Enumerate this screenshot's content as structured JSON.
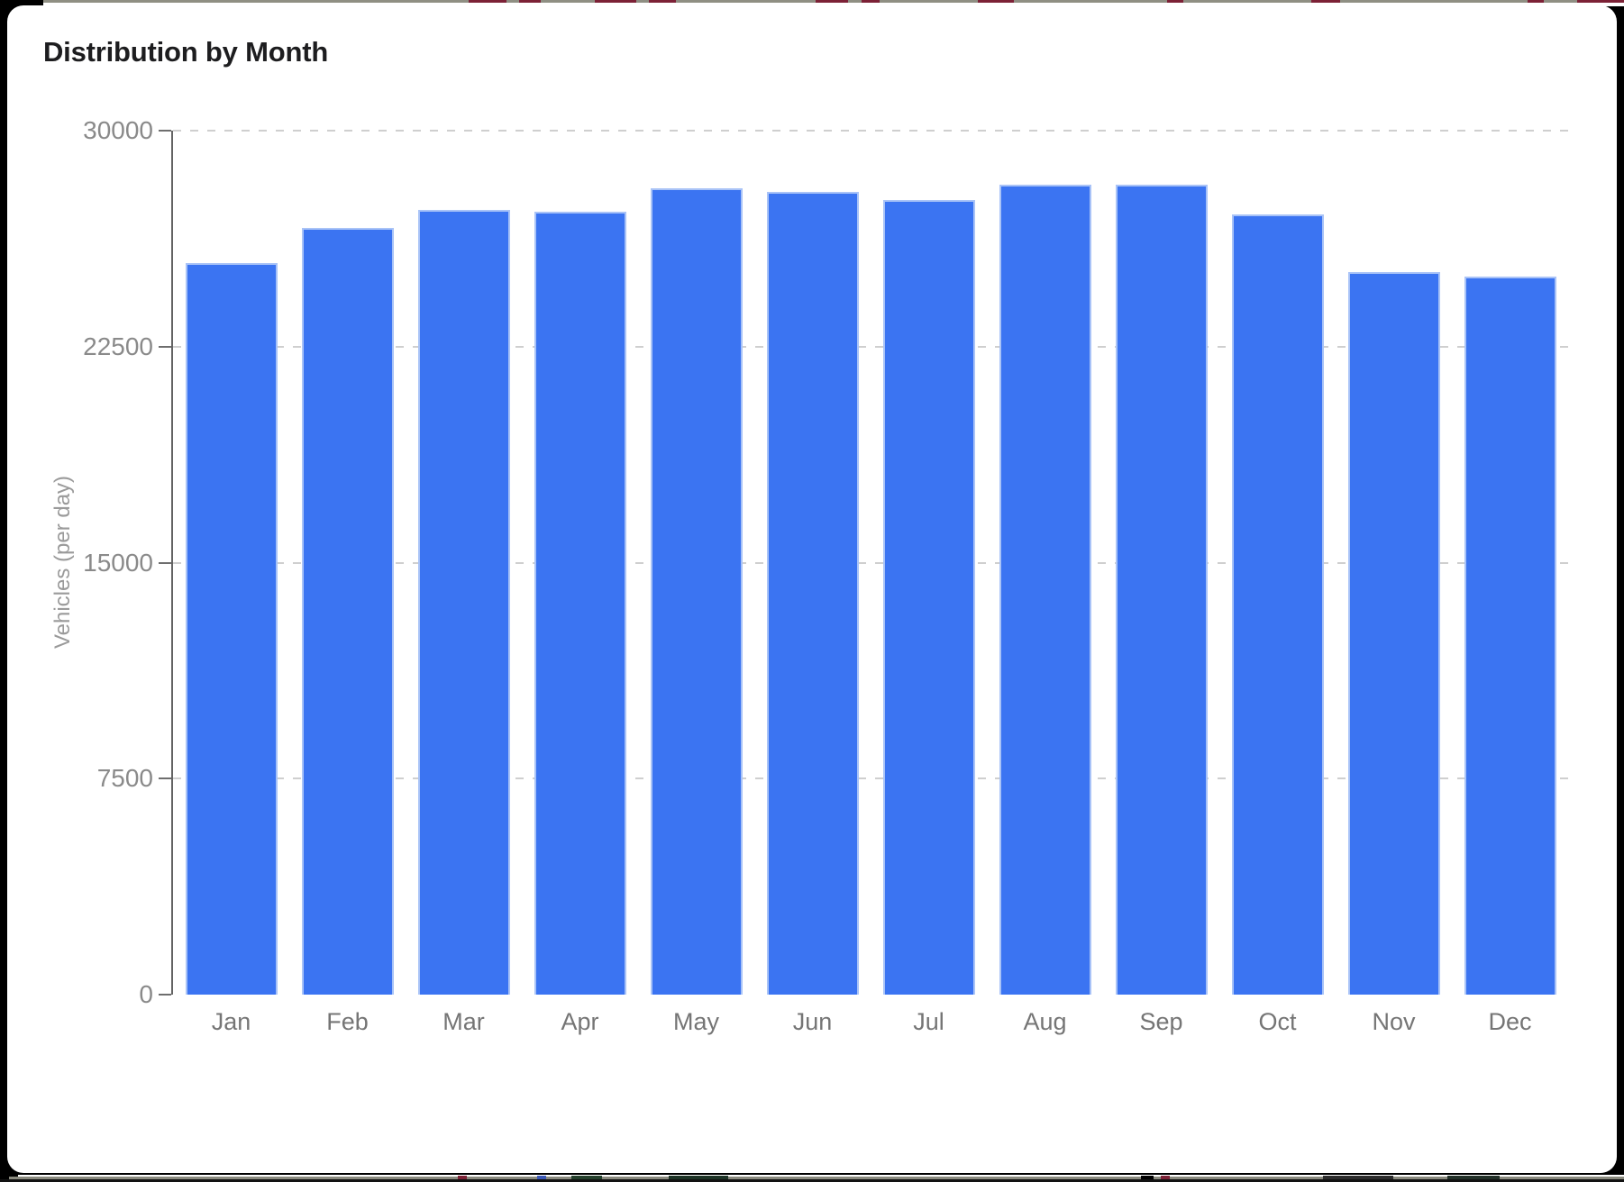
{
  "card": {
    "title": "Distribution by Month"
  },
  "chart_data": {
    "type": "bar",
    "title": "Distribution by Month",
    "categories": [
      "Jan",
      "Feb",
      "Mar",
      "Apr",
      "May",
      "Jun",
      "Jul",
      "Aug",
      "Sep",
      "Oct",
      "Nov",
      "Dec"
    ],
    "values": [
      25400,
      26630,
      27240,
      27180,
      28000,
      27880,
      27580,
      28120,
      28120,
      27090,
      25100,
      24930
    ],
    "xlabel": "",
    "ylabel": "Vehicles (per day)",
    "ylim": [
      0,
      30000
    ],
    "yticks": [
      0,
      7500,
      15000,
      22500,
      30000
    ],
    "grid": "horizontal-dashed",
    "legend": "none",
    "bar_color": "#3b74f2",
    "bar_border_color": "#a9c3f7",
    "gridline_color": "#cfcfcf",
    "axis_color": "#636363",
    "tick_label_color": "#8a8a8a"
  }
}
